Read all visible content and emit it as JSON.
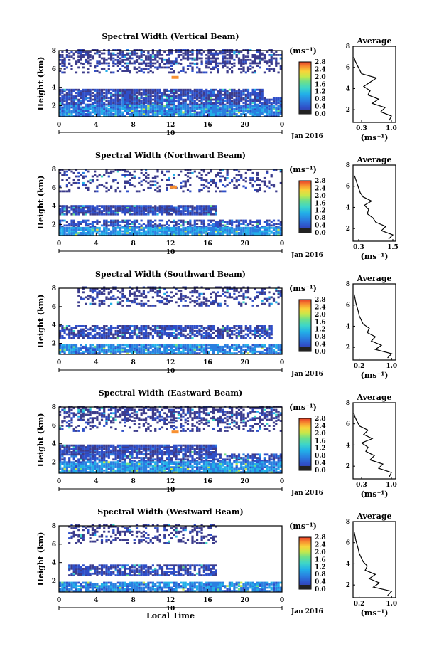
{
  "chart_data": [
    {
      "type": "heatmap",
      "title": "Spectral Width (Vertical Beam)",
      "xlabel": "",
      "ylabel": "Height (km)",
      "x_ticks": [
        "0",
        "4",
        "8",
        "12",
        "16",
        "20",
        "0"
      ],
      "y_ticks": [
        "2",
        "4",
        "6",
        "8"
      ],
      "date_label": "10",
      "month_label": "Jan 2016",
      "colorbar": {
        "label": "(ms⁻¹)",
        "ticks": [
          "0.0",
          "0.4",
          "0.8",
          "1.2",
          "1.6",
          "2.0",
          "2.4",
          "2.8"
        ],
        "range": [
          0,
          2.8
        ]
      },
      "bands": [
        {
          "y0": 6.5,
          "y1": 8.0,
          "x0": 0,
          "x1": 24,
          "density": 0.55,
          "value": 0.1
        },
        {
          "y0": 5.5,
          "y1": 6.5,
          "x0": 0,
          "x1": 24,
          "density": 0.35,
          "value": 0.1
        },
        {
          "y0": 2.9,
          "y1": 3.8,
          "x0": 0,
          "x1": 22,
          "density": 0.9,
          "value": 0.3
        },
        {
          "y0": 2.0,
          "y1": 2.9,
          "x0": 0,
          "x1": 24,
          "density": 0.85,
          "value": 0.35
        },
        {
          "y0": 0.8,
          "y1": 2.0,
          "x0": 0,
          "x1": 24,
          "density": 0.95,
          "value": 0.7
        }
      ],
      "features": [
        {
          "x": 12.5,
          "y": 5.0,
          "value": 2.4
        }
      ],
      "average": {
        "title": "Average",
        "xlabel": "(ms⁻¹)",
        "x_ticks": [
          "0.3",
          "1.0"
        ],
        "xlim": [
          0.1,
          1.1
        ],
        "y_ticks": [
          "2",
          "4",
          "6",
          "8"
        ],
        "ylim": [
          0.8,
          8.0
        ],
        "y": [
          1.0,
          1.4,
          1.8,
          2.2,
          2.6,
          3.0,
          3.4,
          3.8,
          4.2,
          4.6,
          5.0,
          5.4,
          5.8,
          6.2,
          6.6,
          7.0
        ],
        "x": [
          0.95,
          1.0,
          0.75,
          0.85,
          0.55,
          0.7,
          0.45,
          0.5,
          0.35,
          0.5,
          0.65,
          0.3,
          0.25,
          0.2,
          0.15,
          0.12
        ]
      }
    },
    {
      "type": "heatmap",
      "title": "Spectral Width (Northward Beam)",
      "xlabel": "",
      "ylabel": "Height (km)",
      "x_ticks": [
        "0",
        "4",
        "8",
        "12",
        "16",
        "20",
        "0"
      ],
      "y_ticks": [
        "2",
        "4",
        "6",
        "8"
      ],
      "date_label": "10",
      "month_label": "Jan 2016",
      "colorbar": {
        "label": "(ms⁻¹)",
        "ticks": [
          "0.0",
          "0.4",
          "0.8",
          "1.2",
          "1.6",
          "2.0",
          "2.4",
          "2.8"
        ],
        "range": [
          0,
          2.8
        ]
      },
      "bands": [
        {
          "y0": 5.5,
          "y1": 8.0,
          "x0": 0,
          "x1": 24,
          "density": 0.25,
          "value": 0.1
        },
        {
          "y0": 3.0,
          "y1": 4.0,
          "x0": 0,
          "x1": 17,
          "density": 0.9,
          "value": 0.3
        },
        {
          "y0": 1.6,
          "y1": 2.4,
          "x0": 0,
          "x1": 24,
          "density": 0.6,
          "value": 0.35
        },
        {
          "y0": 0.8,
          "y1": 1.6,
          "x0": 0,
          "x1": 24,
          "density": 0.9,
          "value": 0.8
        }
      ],
      "features": [
        {
          "x": 12.3,
          "y": 6.0,
          "value": 2.4
        }
      ],
      "average": {
        "title": "Average",
        "xlabel": "(ms⁻¹)",
        "x_ticks": [
          "0.3",
          "1.5"
        ],
        "xlim": [
          0.1,
          1.6
        ],
        "y_ticks": [
          "2",
          "4",
          "6",
          "8"
        ],
        "ylim": [
          0.8,
          8.0
        ],
        "y": [
          1.0,
          1.4,
          1.8,
          2.2,
          2.6,
          3.0,
          3.4,
          3.8,
          4.2,
          4.6,
          5.0,
          5.4,
          5.8,
          6.2,
          6.6,
          7.0
        ],
        "x": [
          1.35,
          1.5,
          1.1,
          1.25,
          0.9,
          0.8,
          0.6,
          0.65,
          0.5,
          0.75,
          0.45,
          0.35,
          0.3,
          0.25,
          0.2,
          0.15
        ]
      }
    },
    {
      "type": "heatmap",
      "title": "Spectral Width (Southward Beam)",
      "xlabel": "",
      "ylabel": "Height (km)",
      "x_ticks": [
        "0",
        "4",
        "8",
        "12",
        "16",
        "20",
        "0"
      ],
      "y_ticks": [
        "2",
        "4",
        "6",
        "8"
      ],
      "date_label": "10",
      "month_label": "Jan 2016",
      "colorbar": {
        "label": "(ms⁻¹)",
        "ticks": [
          "0.0",
          "0.4",
          "0.8",
          "1.2",
          "1.6",
          "2.0",
          "2.4",
          "2.8"
        ],
        "range": [
          0,
          2.8
        ]
      },
      "bands": [
        {
          "y0": 6.0,
          "y1": 8.0,
          "x0": 2,
          "x1": 24,
          "density": 0.35,
          "value": 0.1
        },
        {
          "y0": 2.5,
          "y1": 3.8,
          "x0": 0,
          "x1": 23,
          "density": 0.7,
          "value": 0.3
        },
        {
          "y0": 0.8,
          "y1": 1.8,
          "x0": 0,
          "x1": 24,
          "density": 0.85,
          "value": 0.7
        }
      ],
      "features": [],
      "average": {
        "title": "Average",
        "xlabel": "(ms⁻¹)",
        "x_ticks": [
          "0.2",
          "1.0"
        ],
        "xlim": [
          0.05,
          1.1
        ],
        "y_ticks": [
          "2",
          "4",
          "6",
          "8"
        ],
        "ylim": [
          0.8,
          8.0
        ],
        "y": [
          1.0,
          1.4,
          1.8,
          2.2,
          2.6,
          3.0,
          3.4,
          3.8,
          4.2,
          4.6,
          5.0,
          5.4,
          5.8,
          6.2,
          6.6,
          7.0
        ],
        "x": [
          0.9,
          1.0,
          0.6,
          0.75,
          0.5,
          0.6,
          0.4,
          0.45,
          0.3,
          0.25,
          0.2,
          0.18,
          0.15,
          0.12,
          0.1,
          0.08
        ]
      }
    },
    {
      "type": "heatmap",
      "title": "Spectral Width (Eastward Beam)",
      "xlabel": "",
      "ylabel": "Height (km)",
      "x_ticks": [
        "0",
        "4",
        "8",
        "12",
        "16",
        "20",
        "0"
      ],
      "y_ticks": [
        "2",
        "4",
        "6",
        "8"
      ],
      "date_label": "10",
      "month_label": "Jan 2016",
      "colorbar": {
        "label": "(ms⁻¹)",
        "ticks": [
          "0.0",
          "0.4",
          "0.8",
          "1.2",
          "1.6",
          "2.0",
          "2.4",
          "2.8"
        ],
        "range": [
          0,
          2.8
        ]
      },
      "bands": [
        {
          "y0": 6.5,
          "y1": 8.0,
          "x0": 0,
          "x1": 24,
          "density": 0.55,
          "value": 0.1
        },
        {
          "y0": 5.3,
          "y1": 6.5,
          "x0": 0,
          "x1": 24,
          "density": 0.3,
          "value": 0.1
        },
        {
          "y0": 2.8,
          "y1": 3.8,
          "x0": 0,
          "x1": 17,
          "density": 0.9,
          "value": 0.3
        },
        {
          "y0": 2.0,
          "y1": 2.8,
          "x0": 0,
          "x1": 24,
          "density": 0.7,
          "value": 0.35
        },
        {
          "y0": 0.8,
          "y1": 2.0,
          "x0": 0,
          "x1": 24,
          "density": 0.9,
          "value": 0.75
        }
      ],
      "features": [
        {
          "x": 12.5,
          "y": 5.2,
          "value": 2.4
        }
      ],
      "average": {
        "title": "Average",
        "xlabel": "(ms⁻¹)",
        "x_ticks": [
          "0.3",
          "1.0"
        ],
        "xlim": [
          0.1,
          1.1
        ],
        "y_ticks": [
          "2",
          "4",
          "6",
          "8"
        ],
        "ylim": [
          0.8,
          8.0
        ],
        "y": [
          1.0,
          1.4,
          1.8,
          2.2,
          2.6,
          3.0,
          3.4,
          3.8,
          4.2,
          4.6,
          5.0,
          5.4,
          5.8,
          6.2,
          6.6,
          7.0
        ],
        "x": [
          0.95,
          1.0,
          0.7,
          0.8,
          0.5,
          0.6,
          0.4,
          0.45,
          0.3,
          0.55,
          0.35,
          0.45,
          0.25,
          0.2,
          0.15,
          0.12
        ]
      }
    },
    {
      "type": "heatmap",
      "title": "Spectral Width (Westward Beam)",
      "xlabel": "Local Time",
      "ylabel": "Height (km)",
      "x_ticks": [
        "0",
        "4",
        "8",
        "12",
        "16",
        "20",
        "0"
      ],
      "y_ticks": [
        "2",
        "4",
        "6",
        "8"
      ],
      "date_label": "10",
      "month_label": "Jan 2016",
      "colorbar": {
        "label": "(ms⁻¹)",
        "ticks": [
          "0.0",
          "0.4",
          "0.8",
          "1.2",
          "1.6",
          "2.0",
          "2.4",
          "2.8"
        ],
        "range": [
          0,
          2.8
        ]
      },
      "bands": [
        {
          "y0": 6.0,
          "y1": 8.0,
          "x0": 1,
          "x1": 17,
          "density": 0.35,
          "value": 0.1
        },
        {
          "y0": 2.5,
          "y1": 3.6,
          "x0": 1,
          "x1": 17,
          "density": 0.75,
          "value": 0.3
        },
        {
          "y0": 0.8,
          "y1": 1.8,
          "x0": 0,
          "x1": 24,
          "density": 0.85,
          "value": 0.7
        }
      ],
      "features": [],
      "average": {
        "title": "Average",
        "xlabel": "(ms⁻¹)",
        "x_ticks": [
          "0.2",
          "1.0"
        ],
        "xlim": [
          0.05,
          1.1
        ],
        "y_ticks": [
          "2",
          "4",
          "6",
          "8"
        ],
        "ylim": [
          0.8,
          8.0
        ],
        "y": [
          1.0,
          1.4,
          1.8,
          2.2,
          2.6,
          3.0,
          3.4,
          3.8,
          4.2,
          4.6,
          5.0,
          5.4,
          5.8,
          6.2,
          6.6,
          7.0
        ],
        "x": [
          0.9,
          1.0,
          0.55,
          0.7,
          0.45,
          0.6,
          0.35,
          0.4,
          0.3,
          0.25,
          0.2,
          0.18,
          0.15,
          0.12,
          0.1,
          0.08
        ]
      }
    }
  ],
  "colors": {
    "scale": [
      "#3c3c8c",
      "#2f4fc8",
      "#2a7fe0",
      "#22b0e8",
      "#3ed6c8",
      "#6ee08a",
      "#c8e84a",
      "#f8d43a",
      "#f89030",
      "#e84028"
    ]
  }
}
